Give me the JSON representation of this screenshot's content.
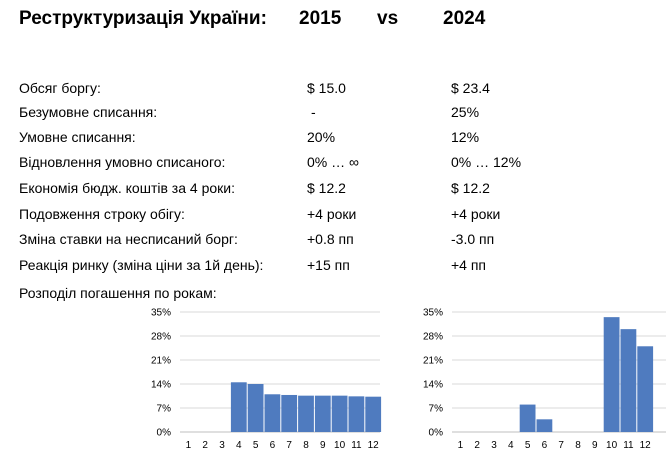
{
  "header": {
    "title": "Реструктуризація України:",
    "year_left": "2015",
    "vs": "vs",
    "year_right": "2024"
  },
  "rows": [
    {
      "label": "Обсяг боргу:",
      "v2015": "$ 15.0",
      "v2024": "$ 23.4"
    },
    {
      "label": "Безумовне списання:",
      "v2015": "-",
      "v2024": "25%"
    },
    {
      "label": "Умовне списання:",
      "v2015": "20%",
      "v2024": "12%"
    },
    {
      "label": "Відновлення умовно списаного:",
      "v2015": "0% … ∞",
      "v2024": "0% … 12%"
    },
    {
      "label": "Економія бюдж. коштів за 4 роки:",
      "v2015": "$ 12.2",
      "v2024": "$ 12.2"
    },
    {
      "label": "Подовження строку обігу:",
      "v2015": "+4 роки",
      "v2024": "+4 роки"
    },
    {
      "label": "Зміна ставки на несписаний борг:",
      "v2015": "+0.8 пп",
      "v2024": "-3.0 пп"
    },
    {
      "label": "Реакція ринку (зміна ціни за 1й день):",
      "v2015": "+15 пп",
      "v2024": "+4 пп"
    }
  ],
  "distribution_label": "Розподіл погашення по рокам:",
  "chart_data": [
    {
      "type": "bar",
      "categories": [
        "1",
        "2",
        "3",
        "4",
        "5",
        "6",
        "7",
        "8",
        "9",
        "10",
        "11",
        "12"
      ],
      "values": [
        0,
        0,
        0,
        14.5,
        14.0,
        11.0,
        10.8,
        10.6,
        10.6,
        10.6,
        10.4,
        10.3
      ],
      "ylim": [
        0,
        35
      ],
      "yticks": [
        "0%",
        "7%",
        "14%",
        "21%",
        "28%",
        "35%"
      ],
      "grid": true,
      "bar_color": "#4f7bbf"
    },
    {
      "type": "bar",
      "categories": [
        "1",
        "2",
        "3",
        "4",
        "5",
        "6",
        "7",
        "8",
        "9",
        "10",
        "11",
        "12"
      ],
      "values": [
        0,
        0,
        0,
        0,
        8.0,
        3.7,
        0,
        0,
        0,
        33.5,
        30.0,
        25.0
      ],
      "ylim": [
        0,
        35
      ],
      "yticks": [
        "0%",
        "7%",
        "14%",
        "21%",
        "28%",
        "35%"
      ],
      "grid": true,
      "bar_color": "#4f7bbf"
    }
  ]
}
